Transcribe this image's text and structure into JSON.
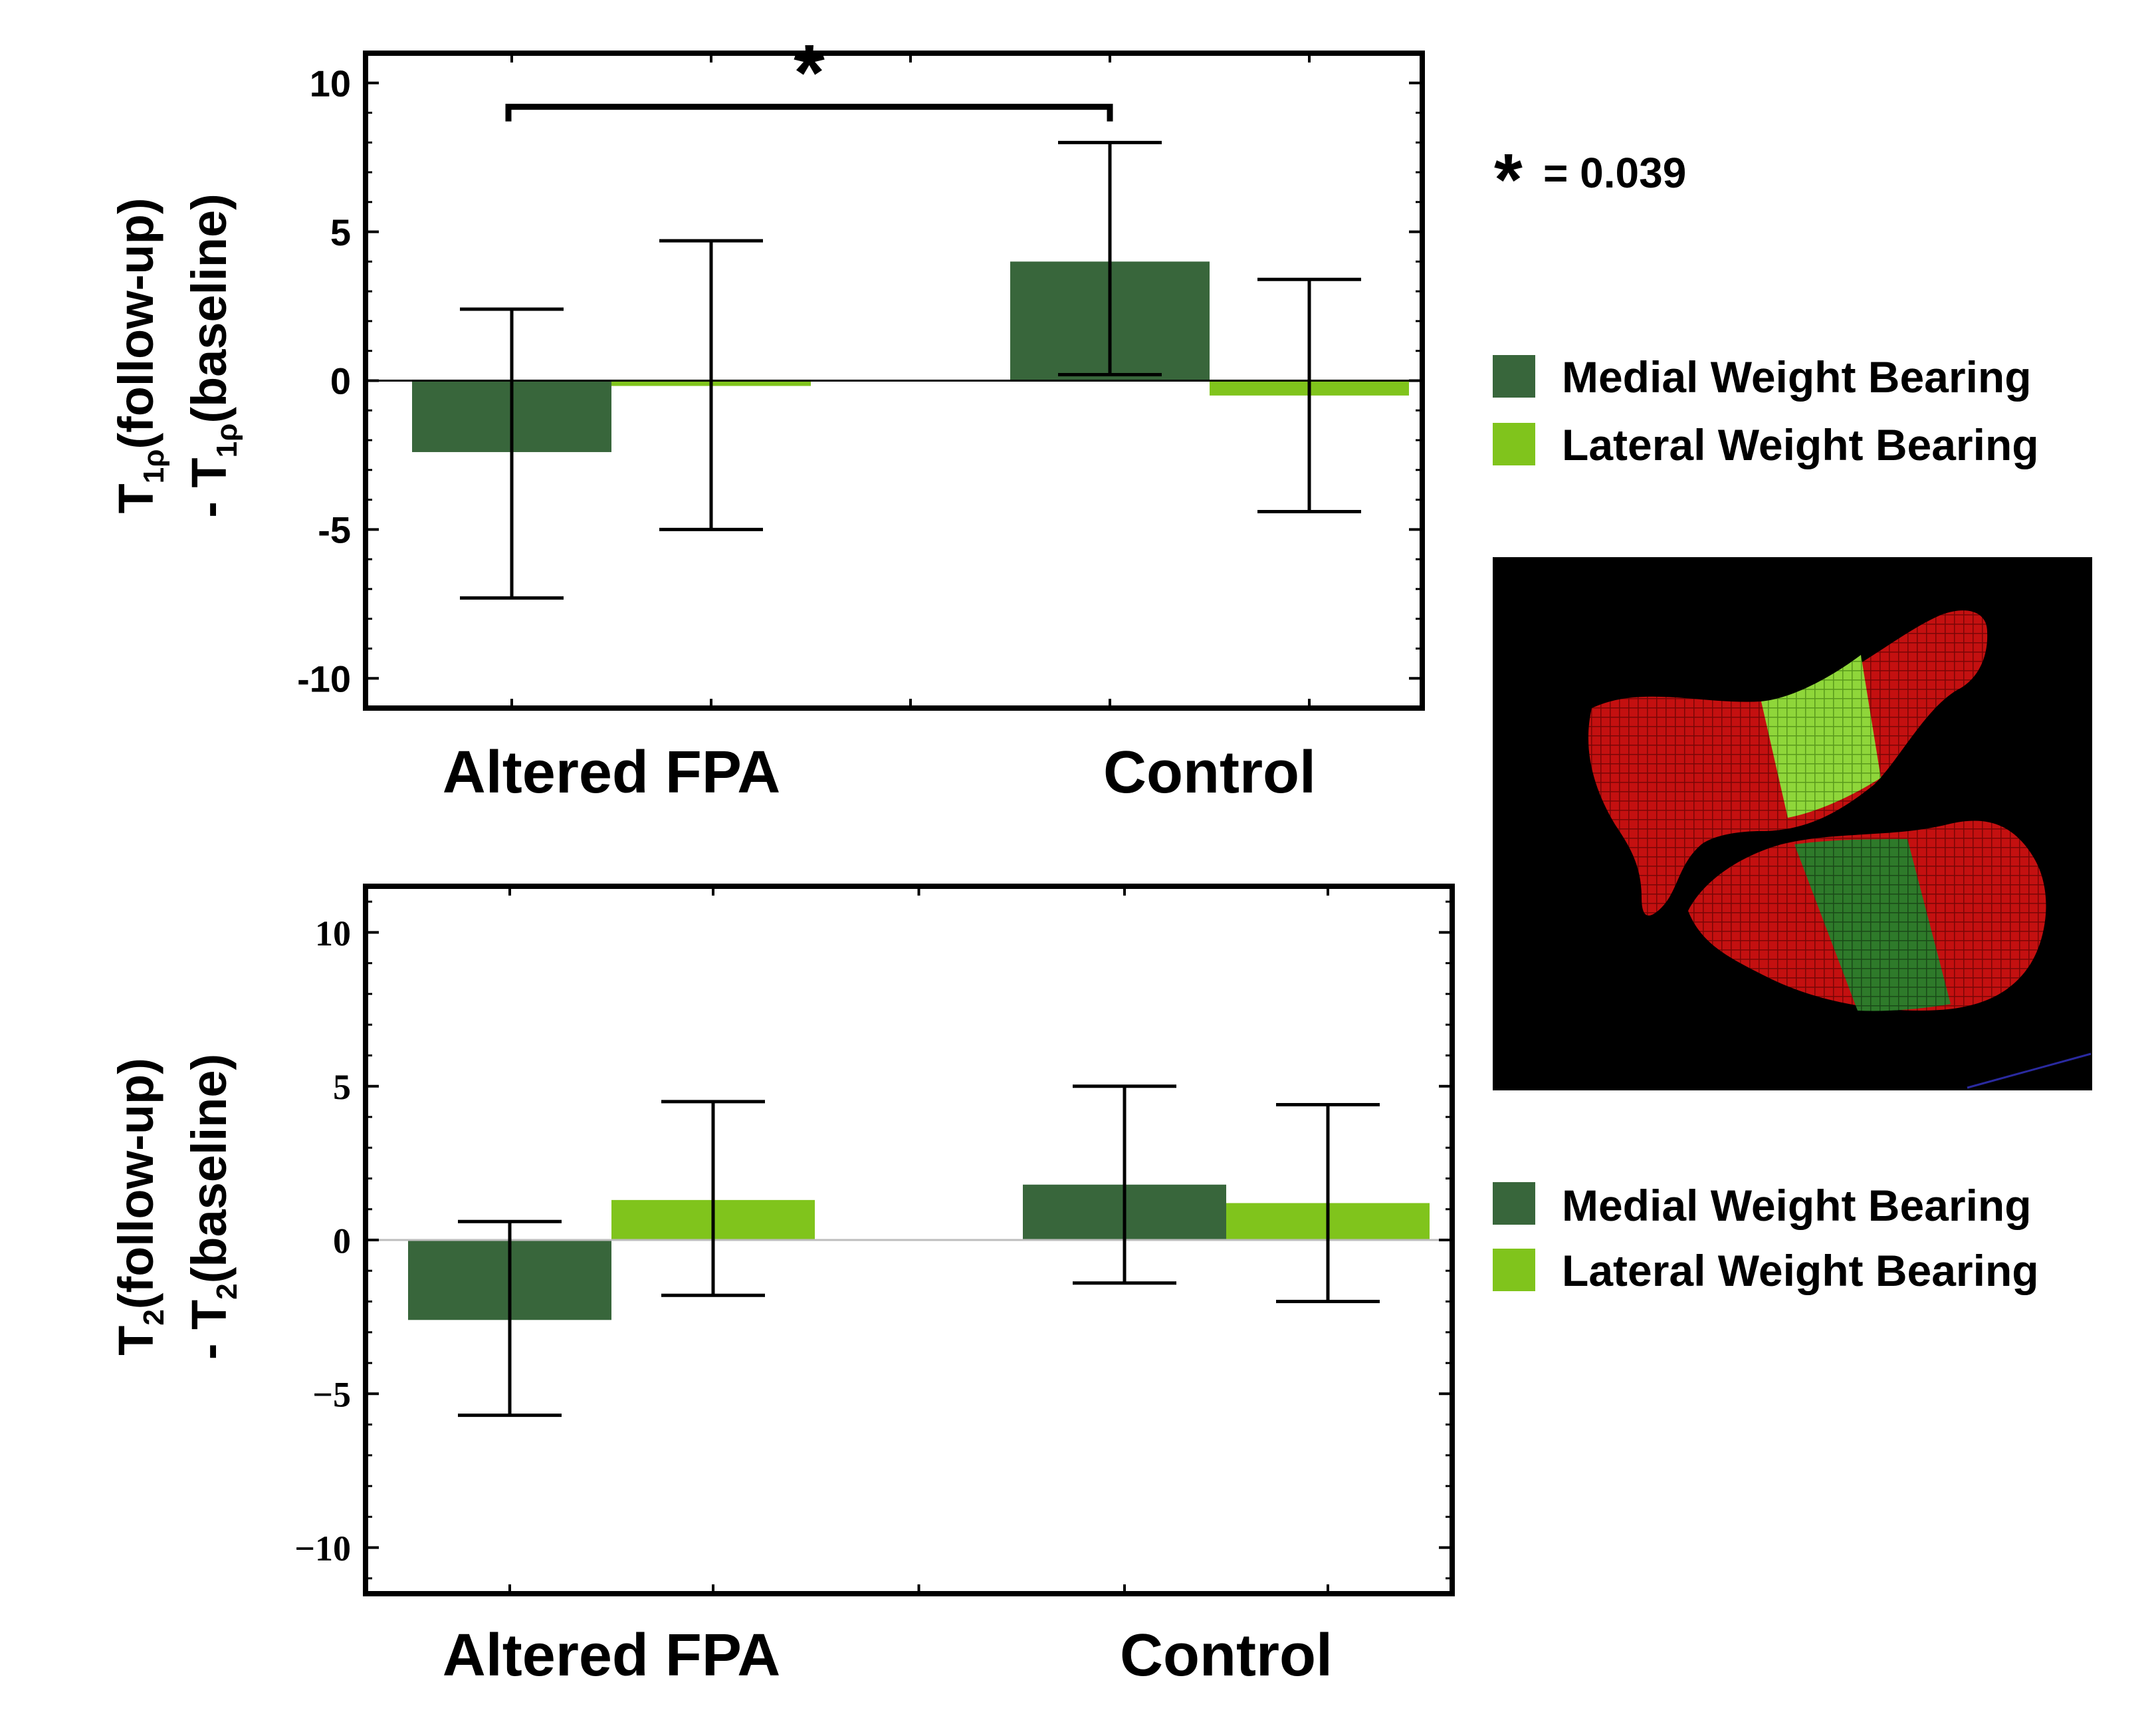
{
  "colors": {
    "medial": "#38663b",
    "lateral": "#80c41c",
    "frame": "#000000",
    "mesh_bg": "#000000",
    "mesh_red": "#c41010"
  },
  "legend": {
    "significance": {
      "symbol": "*",
      "text": "= 0.039"
    },
    "top": {
      "medial_label": "Medial Weight Bearing",
      "lateral_label": "Lateral Weight Bearing"
    },
    "bottom": {
      "medial_label": "Medial Weight Bearing",
      "lateral_label": "Lateral Weight Bearing"
    }
  },
  "chart_data": [
    {
      "type": "bar",
      "name": "t1rho",
      "ylabel_line1": "T",
      "ylabel_sub1": "1ρ",
      "ylabel_rest1": "(follow-up)",
      "ylabel_line2": "- T",
      "ylabel_sub2": "1ρ",
      "ylabel_rest2": "(baseline)",
      "categories": [
        "Altered FPA",
        "Control"
      ],
      "ylim": [
        -11,
        11
      ],
      "yticks": [
        10,
        5,
        0,
        -5,
        -10
      ],
      "ytick_labels": [
        "10",
        "5",
        "0",
        "-5",
        "-10"
      ],
      "series": [
        {
          "name": "Medial Weight Bearing",
          "values": [
            -2.4,
            4.0
          ],
          "err_low": [
            -7.3,
            0.2
          ],
          "err_high": [
            2.4,
            8.0
          ]
        },
        {
          "name": "Lateral Weight Bearing",
          "values": [
            -0.1,
            -0.5
          ],
          "err_low": [
            -5.0,
            -4.4
          ],
          "err_high": [
            4.7,
            3.4
          ]
        }
      ],
      "significance": {
        "label": "*",
        "from": "Altered FPA",
        "to": "Control",
        "level": 9.2
      }
    },
    {
      "type": "bar",
      "name": "t2",
      "ylabel_line1": "T",
      "ylabel_sub1": "2",
      "ylabel_rest1": "(follow-up)",
      "ylabel_line2": "- T",
      "ylabel_sub2": "2",
      "ylabel_rest2": "(baseline)",
      "categories": [
        "Altered FPA",
        "Control"
      ],
      "ylim": [
        -11.5,
        11.5
      ],
      "yticks": [
        10,
        5,
        0,
        -5,
        -10
      ],
      "ytick_labels": [
        "10",
        "5",
        "0",
        "−5",
        "−10"
      ],
      "series": [
        {
          "name": "Medial Weight Bearing",
          "values": [
            -2.6,
            1.8
          ],
          "err_low": [
            -5.7,
            -1.4
          ],
          "err_high": [
            0.6,
            5.0
          ]
        },
        {
          "name": "Lateral Weight Bearing",
          "values": [
            1.3,
            1.2
          ],
          "err_low": [
            -1.8,
            -2.0
          ],
          "err_high": [
            4.5,
            4.4
          ]
        }
      ]
    }
  ]
}
